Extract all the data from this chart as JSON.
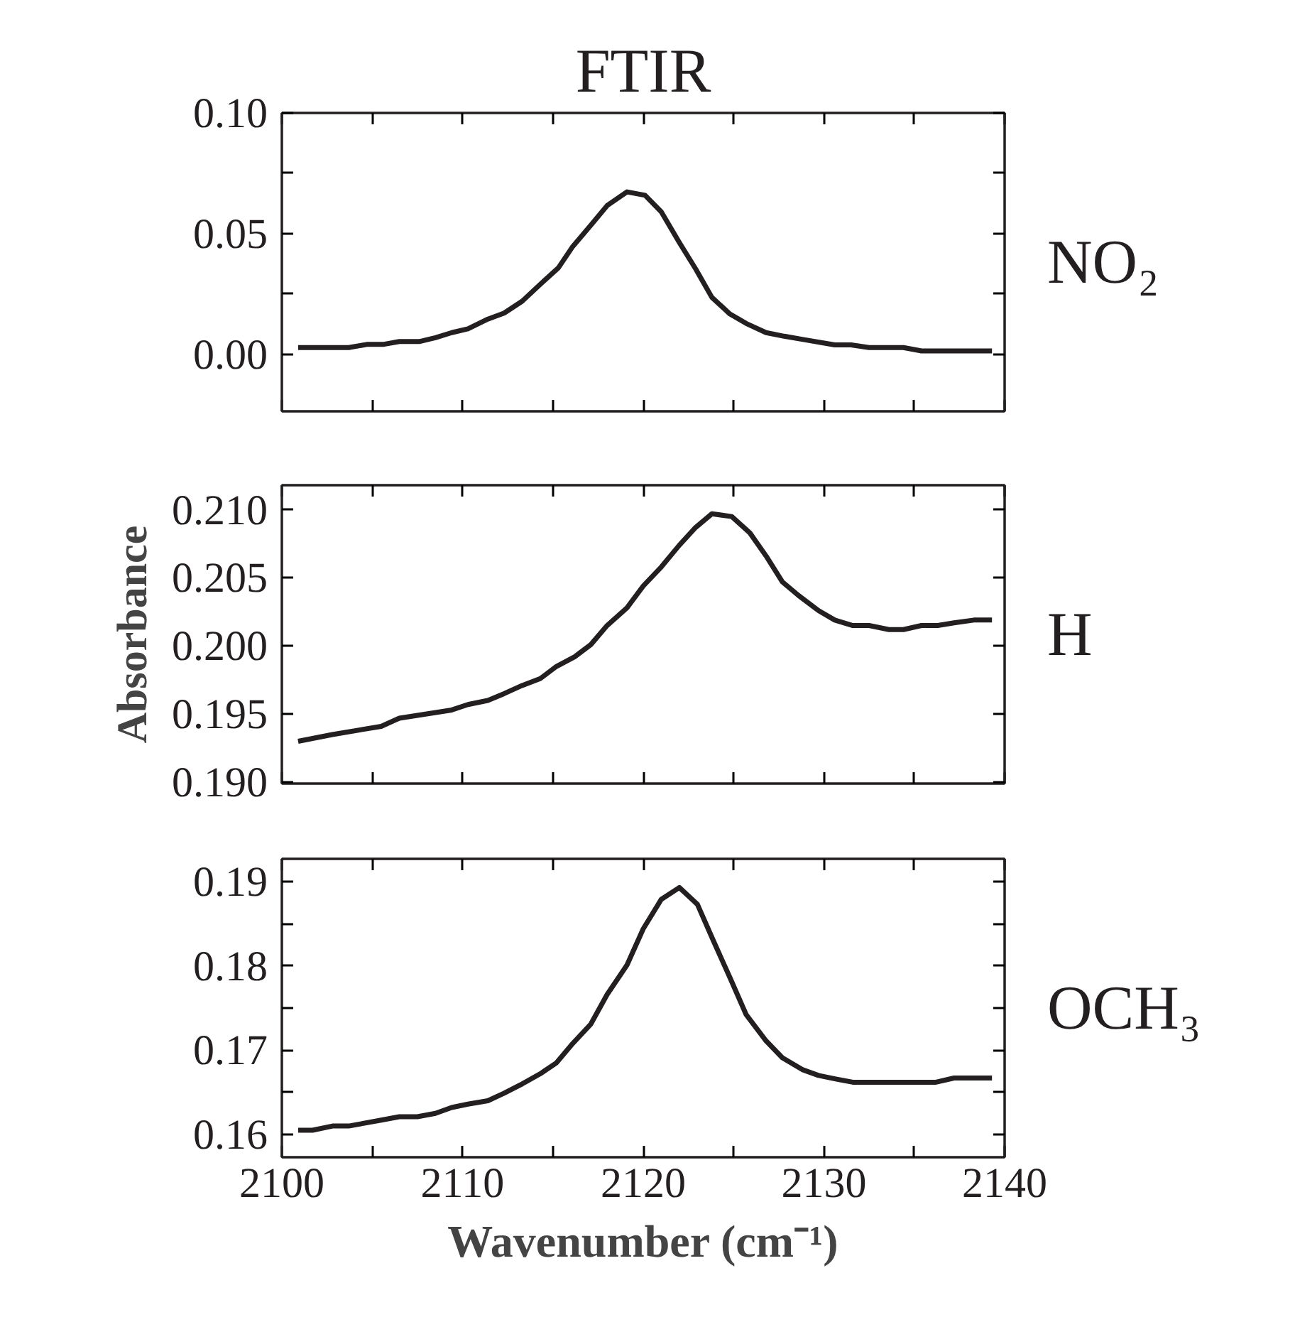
{
  "chart_data": [
    {
      "type": "line",
      "title": "FTIR",
      "tick_labels": "y",
      "xlim": [
        2100,
        2140
      ],
      "ylim": [
        -0.0236,
        0.1
      ],
      "xticks": [
        {
          "value": 2100,
          "label": null
        },
        {
          "value": 2105,
          "label": null
        },
        {
          "value": 2110,
          "label": null
        },
        {
          "value": 2115,
          "label": null
        },
        {
          "value": 2120,
          "label": null
        },
        {
          "value": 2125,
          "label": null
        },
        {
          "value": 2130,
          "label": null
        },
        {
          "value": 2135,
          "label": null
        },
        {
          "value": 2140,
          "label": null
        }
      ],
      "yticks": [
        {
          "value": 0.0,
          "label": "0.00"
        },
        {
          "value": 0.025,
          "label": null
        },
        {
          "value": 0.05,
          "label": "0.05"
        },
        {
          "value": 0.075,
          "label": null
        },
        {
          "value": 0.1,
          "label": "0.10"
        }
      ],
      "series": [
        {
          "name": "NO₂",
          "color": "#231f20",
          "x": [
            2100.9,
            2103.7,
            2104.7,
            2105.6,
            2106.5,
            2107.6,
            2108.5,
            2109.4,
            2110.3,
            2111.4,
            2112.3,
            2113.3,
            2114.3,
            2115.3,
            2116.1,
            2117.1,
            2118.0,
            2119.1,
            2120.1,
            2121.0,
            2122.0,
            2122.9,
            2123.8,
            2124.8,
            2125.7,
            2126.8,
            2127.8,
            2128.9,
            2130.6,
            2131.5,
            2132.5,
            2134.4,
            2135.4,
            2139.3
          ],
          "values": [
            0.0028,
            0.0028,
            0.0041,
            0.0041,
            0.0053,
            0.0053,
            0.0069,
            0.009,
            0.0106,
            0.0146,
            0.0171,
            0.022,
            0.029,
            0.0358,
            0.0447,
            0.0535,
            0.0616,
            0.0673,
            0.0659,
            0.059,
            0.0463,
            0.0354,
            0.0236,
            0.0167,
            0.0128,
            0.009,
            0.0075,
            0.0061,
            0.0039,
            0.0039,
            0.0028,
            0.0028,
            0.0014,
            0.0014
          ]
        }
      ]
    },
    {
      "type": "line",
      "ylabel": "Absorbance",
      "tick_labels": "y",
      "xlim": [
        2100,
        2140
      ],
      "ylim": [
        0.1899,
        0.2118
      ],
      "xticks": [
        {
          "value": 2100,
          "label": null
        },
        {
          "value": 2105,
          "label": null
        },
        {
          "value": 2110,
          "label": null
        },
        {
          "value": 2115,
          "label": null
        },
        {
          "value": 2120,
          "label": null
        },
        {
          "value": 2125,
          "label": null
        },
        {
          "value": 2130,
          "label": null
        },
        {
          "value": 2135,
          "label": null
        },
        {
          "value": 2140,
          "label": null
        }
      ],
      "yticks": [
        {
          "value": 0.19,
          "label": "0.190"
        },
        {
          "value": 0.195,
          "label": "0.195"
        },
        {
          "value": 0.2,
          "label": "0.200"
        },
        {
          "value": 0.205,
          "label": "0.205"
        },
        {
          "value": 0.21,
          "label": "0.210"
        }
      ],
      "series": [
        {
          "name": "H",
          "color": "#231f20",
          "x": [
            2100.9,
            2102.8,
            2105.5,
            2106.5,
            2109.4,
            2110.3,
            2111.4,
            2112.3,
            2113.3,
            2114.3,
            2115.2,
            2116.2,
            2117.1,
            2118.0,
            2119.1,
            2120.0,
            2121.0,
            2122.0,
            2122.9,
            2123.8,
            2124.9,
            2125.9,
            2126.8,
            2127.7,
            2128.6,
            2129.7,
            2130.6,
            2131.6,
            2132.5,
            2133.6,
            2134.4,
            2135.4,
            2136.3,
            2137.2,
            2138.3,
            2139.3
          ],
          "values": [
            0.193,
            0.1935,
            0.1941,
            0.1947,
            0.1953,
            0.1957,
            0.196,
            0.1965,
            0.1971,
            0.1976,
            0.1985,
            0.1992,
            0.2001,
            0.2015,
            0.2028,
            0.2044,
            0.2058,
            0.2074,
            0.2087,
            0.2097,
            0.2095,
            0.2083,
            0.2066,
            0.2047,
            0.2037,
            0.2026,
            0.2019,
            0.2015,
            0.2015,
            0.2012,
            0.2012,
            0.2015,
            0.2015,
            0.2017,
            0.2019,
            0.2019
          ]
        }
      ]
    },
    {
      "type": "line",
      "xlabel": "Wavenumber (cm⁻¹)",
      "xlim": [
        2100,
        2140
      ],
      "ylim": [
        0.1573,
        0.1927
      ],
      "xticks": [
        2100,
        {
          "value": 2105,
          "label": null
        },
        2110,
        {
          "value": 2115,
          "label": null
        },
        2120,
        {
          "value": 2125,
          "label": null
        },
        2130,
        {
          "value": 2135,
          "label": null
        },
        2140
      ],
      "yticks": [
        {
          "value": 0.16,
          "label": "0.16"
        },
        {
          "value": 0.165,
          "label": null
        },
        {
          "value": 0.17,
          "label": "0.17"
        },
        {
          "value": 0.175,
          "label": null
        },
        {
          "value": 0.18,
          "label": "0.18"
        },
        {
          "value": 0.185,
          "label": null
        },
        {
          "value": 0.19,
          "label": "0.19"
        }
      ],
      "series": [
        {
          "name": "OCH₃",
          "color": "#231f20",
          "x": [
            2100.9,
            2101.7,
            2102.8,
            2103.7,
            2105.5,
            2106.5,
            2107.5,
            2108.5,
            2109.4,
            2110.3,
            2111.4,
            2112.3,
            2113.3,
            2114.3,
            2115.2,
            2116.1,
            2117.1,
            2118.0,
            2119.1,
            2120.0,
            2121.0,
            2122.0,
            2123.0,
            2123.9,
            2124.8,
            2125.7,
            2126.8,
            2127.7,
            2128.8,
            2129.7,
            2130.6,
            2131.6,
            2136.2,
            2137.2,
            2139.3
          ],
          "values": [
            0.1605,
            0.1605,
            0.161,
            0.161,
            0.1617,
            0.1621,
            0.1621,
            0.1625,
            0.1632,
            0.1636,
            0.164,
            0.1649,
            0.166,
            0.1672,
            0.1685,
            0.1708,
            0.1731,
            0.1766,
            0.1801,
            0.1844,
            0.1879,
            0.1893,
            0.1873,
            0.1829,
            0.1786,
            0.1742,
            0.1711,
            0.1691,
            0.1677,
            0.167,
            0.1666,
            0.1662,
            0.1662,
            0.1667,
            0.1667
          ]
        }
      ]
    }
  ]
}
